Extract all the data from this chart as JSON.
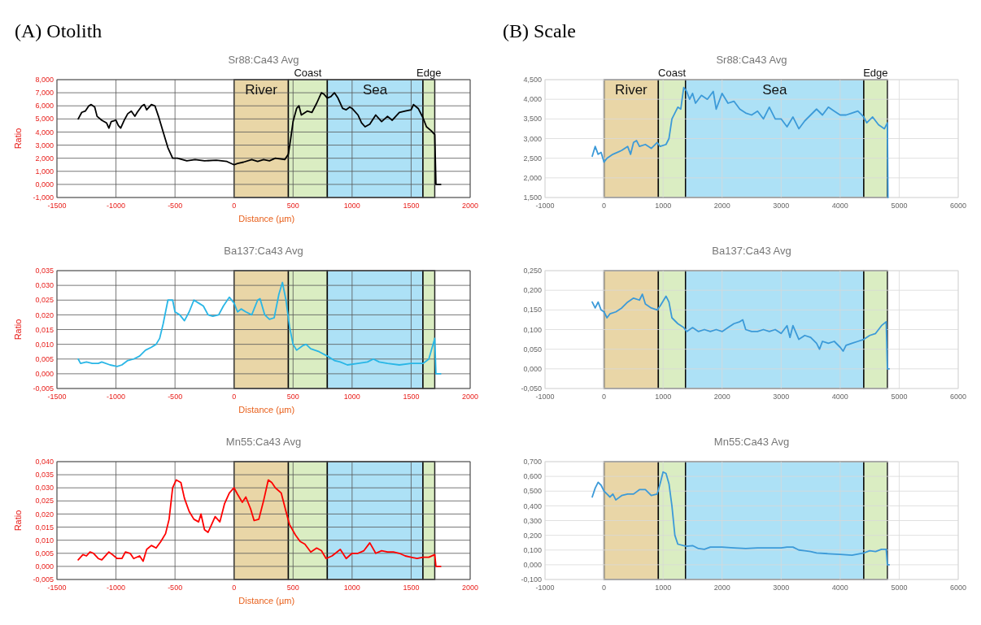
{
  "chart_data": [
    {
      "type": "line",
      "title": "Sr88:Ca43 Avg",
      "annotations": [
        "(A) Otolith"
      ],
      "xlabel": "Distance (µm)",
      "ylabel": "Ratio",
      "grid": true,
      "x": [
        -1320,
        -1290,
        -1260,
        -1230,
        -1210,
        -1180,
        -1160,
        -1120,
        -1080,
        -1060,
        -1040,
        -1000,
        -980,
        -960,
        -930,
        -900,
        -870,
        -840,
        -820,
        -780,
        -760,
        -740,
        -700,
        -670,
        -640,
        -600,
        -560,
        -520,
        -480,
        -400,
        -330,
        -250,
        -150,
        -60,
        0,
        30,
        80,
        150,
        200,
        250,
        300,
        350,
        430,
        460,
        480,
        500,
        530,
        550,
        570,
        620,
        660,
        700,
        740,
        760,
        790,
        820,
        850,
        880,
        920,
        950,
        980,
        1000,
        1050,
        1080,
        1110,
        1150,
        1200,
        1250,
        1300,
        1340,
        1400,
        1450,
        1500,
        1520,
        1560,
        1600,
        1630,
        1670,
        1700,
        1710,
        1750
      ],
      "series": [
        {
          "color": "#000000",
          "values": [
            5.0,
            5.5,
            5.6,
            6.0,
            6.1,
            5.9,
            5.2,
            4.9,
            4.7,
            4.3,
            4.8,
            4.9,
            4.5,
            4.3,
            4.9,
            5.4,
            5.6,
            5.2,
            5.5,
            6.0,
            6.1,
            5.7,
            6.1,
            6.0,
            5.2,
            4.0,
            2.8,
            2.0,
            2.0,
            1.8,
            1.9,
            1.8,
            1.85,
            1.75,
            1.5,
            1.6,
            1.7,
            1.9,
            1.75,
            1.9,
            1.8,
            2.0,
            1.9,
            2.3,
            3.5,
            4.8,
            5.8,
            6.0,
            5.3,
            5.6,
            5.5,
            6.2,
            7.0,
            6.9,
            6.6,
            6.7,
            7.0,
            6.6,
            5.8,
            5.7,
            5.9,
            5.8,
            5.3,
            4.7,
            4.4,
            4.6,
            5.3,
            4.8,
            5.2,
            4.9,
            5.5,
            5.6,
            5.7,
            6.1,
            5.8,
            5.1,
            4.4,
            4.1,
            3.8,
            0,
            0
          ]
        }
      ],
      "xlim": [
        -1500,
        2000
      ],
      "xticks": [
        -1500,
        -1000,
        -500,
        0,
        500,
        1000,
        1500,
        2000
      ],
      "ylim": [
        -1,
        8
      ],
      "yticks": [
        {
          "value": -1,
          "label": "-1,000"
        },
        {
          "value": 0,
          "label": "0,000"
        },
        {
          "value": 1,
          "label": "1,000"
        },
        {
          "value": 2,
          "label": "2,000"
        },
        {
          "value": 3,
          "label": "3,000"
        },
        {
          "value": 4,
          "label": "4,000"
        },
        {
          "value": 5,
          "label": "5,000"
        },
        {
          "value": 6,
          "label": "6,000"
        },
        {
          "value": 7,
          "label": "7,000"
        },
        {
          "value": 8,
          "label": "8,000"
        }
      ],
      "bands": [
        {
          "axis": "x",
          "from": 0,
          "to": 460,
          "label": "River",
          "color": "#e6cf98"
        },
        {
          "axis": "x",
          "from": 460,
          "to": 790,
          "label": "Coast",
          "color": "#d4ebb8"
        },
        {
          "axis": "x",
          "from": 790,
          "to": 1600,
          "label": "Sea",
          "color": "#9fdcf5"
        },
        {
          "axis": "x",
          "from": 1600,
          "to": 1700,
          "label": "Edge",
          "color": "#d4ebb8"
        }
      ]
    },
    {
      "type": "line",
      "title": "Ba137:Ca43 Avg",
      "xlabel": "Distance (µm)",
      "ylabel": "Ratio",
      "grid": true,
      "x": [
        -1320,
        -1300,
        -1250,
        -1200,
        -1150,
        -1120,
        -1050,
        -990,
        -950,
        -900,
        -850,
        -800,
        -750,
        -700,
        -660,
        -630,
        -600,
        -560,
        -520,
        -500,
        -460,
        -420,
        -380,
        -340,
        -300,
        -260,
        -220,
        -180,
        -130,
        -90,
        -40,
        0,
        30,
        60,
        100,
        150,
        200,
        220,
        260,
        300,
        340,
        380,
        410,
        440,
        470,
        500,
        530,
        580,
        610,
        650,
        720,
        790,
        850,
        900,
        960,
        1050,
        1130,
        1180,
        1230,
        1300,
        1400,
        1500,
        1600,
        1650,
        1700,
        1710,
        1750
      ],
      "series": [
        {
          "color": "#29b6e6",
          "values": [
            0.005,
            0.0035,
            0.004,
            0.0035,
            0.0035,
            0.004,
            0.003,
            0.0025,
            0.003,
            0.0045,
            0.005,
            0.006,
            0.008,
            0.009,
            0.01,
            0.012,
            0.017,
            0.025,
            0.025,
            0.021,
            0.02,
            0.018,
            0.021,
            0.025,
            0.024,
            0.023,
            0.02,
            0.0195,
            0.02,
            0.023,
            0.026,
            0.024,
            0.021,
            0.022,
            0.021,
            0.02,
            0.025,
            0.0255,
            0.02,
            0.0185,
            0.019,
            0.027,
            0.031,
            0.025,
            0.016,
            0.01,
            0.008,
            0.0095,
            0.01,
            0.0085,
            0.0075,
            0.006,
            0.0045,
            0.004,
            0.003,
            0.0035,
            0.004,
            0.005,
            0.004,
            0.0035,
            0.003,
            0.0035,
            0.0035,
            0.005,
            0.012,
            0,
            0
          ]
        }
      ],
      "xlim": [
        -1500,
        2000
      ],
      "xticks": [
        -1500,
        -1000,
        -500,
        0,
        500,
        1000,
        1500,
        2000
      ],
      "ylim": [
        -0.005,
        0.035
      ],
      "yticks": [
        {
          "value": -0.005,
          "label": "-0,005"
        },
        {
          "value": 0,
          "label": "0,000"
        },
        {
          "value": 0.005,
          "label": "0,005"
        },
        {
          "value": 0.01,
          "label": "0,010"
        },
        {
          "value": 0.015,
          "label": "0,015"
        },
        {
          "value": 0.02,
          "label": "0,020"
        },
        {
          "value": 0.025,
          "label": "0,025"
        },
        {
          "value": 0.03,
          "label": "0,030"
        },
        {
          "value": 0.035,
          "label": "0,035"
        }
      ],
      "bands": [
        {
          "axis": "x",
          "from": 0,
          "to": 460,
          "color": "#e6cf98"
        },
        {
          "axis": "x",
          "from": 460,
          "to": 790,
          "color": "#d4ebb8"
        },
        {
          "axis": "x",
          "from": 790,
          "to": 1600,
          "color": "#9fdcf5"
        },
        {
          "axis": "x",
          "from": 1600,
          "to": 1700,
          "color": "#d4ebb8"
        }
      ]
    },
    {
      "type": "line",
      "title": "Mn55:Ca43 Avg",
      "xlabel": "Distance (µm)",
      "ylabel": "Ratio",
      "grid": true,
      "x": [
        -1320,
        -1280,
        -1250,
        -1220,
        -1190,
        -1150,
        -1120,
        -1060,
        -1030,
        -990,
        -950,
        -920,
        -880,
        -850,
        -800,
        -770,
        -740,
        -700,
        -660,
        -620,
        -580,
        -550,
        -520,
        -490,
        -450,
        -420,
        -380,
        -340,
        -300,
        -280,
        -250,
        -220,
        -190,
        -160,
        -120,
        -80,
        -40,
        0,
        30,
        70,
        100,
        140,
        170,
        210,
        250,
        290,
        320,
        350,
        400,
        440,
        470,
        520,
        560,
        600,
        650,
        700,
        740,
        780,
        830,
        900,
        950,
        1000,
        1050,
        1100,
        1150,
        1200,
        1250,
        1300,
        1350,
        1400,
        1450,
        1500,
        1550,
        1600,
        1650,
        1700,
        1710,
        1750
      ],
      "series": [
        {
          "color": "#ff0000",
          "values": [
            0.0025,
            0.0045,
            0.004,
            0.0055,
            0.005,
            0.003,
            0.0025,
            0.0055,
            0.0045,
            0.003,
            0.003,
            0.0055,
            0.005,
            0.003,
            0.004,
            0.002,
            0.0065,
            0.008,
            0.007,
            0.0095,
            0.0125,
            0.018,
            0.03,
            0.033,
            0.032,
            0.026,
            0.021,
            0.018,
            0.017,
            0.02,
            0.014,
            0.013,
            0.016,
            0.019,
            0.017,
            0.024,
            0.028,
            0.03,
            0.0275,
            0.0245,
            0.0265,
            0.022,
            0.0175,
            0.018,
            0.025,
            0.033,
            0.032,
            0.03,
            0.028,
            0.021,
            0.016,
            0.012,
            0.0095,
            0.0085,
            0.0055,
            0.007,
            0.006,
            0.003,
            0.004,
            0.0065,
            0.003,
            0.005,
            0.005,
            0.006,
            0.009,
            0.005,
            0.006,
            0.0055,
            0.0055,
            0.005,
            0.004,
            0.0035,
            0.003,
            0.0035,
            0.0035,
            0.0045,
            0,
            0
          ]
        }
      ],
      "xlim": [
        -1500,
        2000
      ],
      "xticks": [
        -1500,
        -1000,
        -500,
        0,
        500,
        1000,
        1500,
        2000
      ],
      "ylim": [
        -0.005,
        0.04
      ],
      "yticks": [
        {
          "value": -0.005,
          "label": "-0,005"
        },
        {
          "value": 0,
          "label": "0,000"
        },
        {
          "value": 0.005,
          "label": "0,005"
        },
        {
          "value": 0.01,
          "label": "0,010"
        },
        {
          "value": 0.015,
          "label": "0,015"
        },
        {
          "value": 0.02,
          "label": "0,020"
        },
        {
          "value": 0.025,
          "label": "0,025"
        },
        {
          "value": 0.03,
          "label": "0,030"
        },
        {
          "value": 0.035,
          "label": "0,035"
        },
        {
          "value": 0.04,
          "label": "0,040"
        }
      ],
      "bands": [
        {
          "axis": "x",
          "from": 0,
          "to": 460,
          "color": "#e6cf98"
        },
        {
          "axis": "x",
          "from": 460,
          "to": 790,
          "color": "#d4ebb8"
        },
        {
          "axis": "x",
          "from": 790,
          "to": 1600,
          "color": "#9fdcf5"
        },
        {
          "axis": "x",
          "from": 1600,
          "to": 1700,
          "color": "#d4ebb8"
        }
      ]
    },
    {
      "type": "line",
      "title": "Sr88:Ca43 Avg",
      "annotations": [
        "(B) Scale"
      ],
      "grid": true,
      "x": [
        -200,
        -150,
        -100,
        -50,
        0,
        50,
        150,
        300,
        400,
        450,
        500,
        550,
        600,
        700,
        800,
        900,
        950,
        1050,
        1100,
        1150,
        1250,
        1300,
        1350,
        1400,
        1450,
        1500,
        1550,
        1650,
        1750,
        1850,
        1900,
        2000,
        2100,
        2200,
        2300,
        2400,
        2500,
        2600,
        2700,
        2800,
        2900,
        3000,
        3100,
        3200,
        3300,
        3400,
        3500,
        3600,
        3700,
        3800,
        3900,
        4000,
        4100,
        4200,
        4300,
        4400,
        4450,
        4550,
        4650,
        4750,
        4800,
        4810
      ],
      "series": [
        {
          "color": "#3c9ad8",
          "values": [
            2.55,
            2.8,
            2.6,
            2.65,
            2.4,
            2.5,
            2.6,
            2.7,
            2.8,
            2.6,
            2.9,
            2.95,
            2.8,
            2.85,
            2.75,
            2.9,
            2.8,
            2.85,
            3.0,
            3.5,
            3.8,
            3.75,
            4.3,
            4.2,
            4.0,
            4.15,
            3.9,
            4.1,
            4.0,
            4.2,
            3.75,
            4.15,
            3.9,
            3.95,
            3.75,
            3.65,
            3.6,
            3.7,
            3.5,
            3.8,
            3.5,
            3.5,
            3.3,
            3.55,
            3.25,
            3.45,
            3.6,
            3.75,
            3.6,
            3.8,
            3.7,
            3.6,
            3.6,
            3.65,
            3.7,
            3.55,
            3.4,
            3.55,
            3.35,
            3.25,
            3.4,
            1.5
          ]
        }
      ],
      "xlim": [
        -1000,
        6000
      ],
      "xticks": [
        -1000,
        0,
        1000,
        2000,
        3000,
        4000,
        5000,
        6000
      ],
      "ylim": [
        1.5,
        4.5
      ],
      "yticks": [
        {
          "value": 1.5,
          "label": "1,500"
        },
        {
          "value": 2,
          "label": "2,000"
        },
        {
          "value": 2.5,
          "label": "2,500"
        },
        {
          "value": 3,
          "label": "3,000"
        },
        {
          "value": 3.5,
          "label": "3,500"
        },
        {
          "value": 4,
          "label": "4,000"
        },
        {
          "value": 4.5,
          "label": "4,500"
        }
      ],
      "bands": [
        {
          "axis": "x",
          "from": 0,
          "to": 920,
          "label": "River",
          "color": "#e6cf98"
        },
        {
          "axis": "x",
          "from": 920,
          "to": 1380,
          "label": "Coast",
          "color": "#d4ebb8"
        },
        {
          "axis": "x",
          "from": 1380,
          "to": 4400,
          "label": "Sea",
          "color": "#9fdcf5"
        },
        {
          "axis": "x",
          "from": 4400,
          "to": 4800,
          "label": "Edge",
          "color": "#d4ebb8"
        }
      ]
    },
    {
      "type": "line",
      "title": "Ba137:Ca43 Avg",
      "grid": true,
      "x": [
        -200,
        -150,
        -100,
        -50,
        0,
        50,
        100,
        200,
        300,
        400,
        500,
        600,
        650,
        700,
        800,
        900,
        950,
        1050,
        1100,
        1150,
        1250,
        1350,
        1400,
        1500,
        1600,
        1700,
        1800,
        1900,
        2000,
        2100,
        2200,
        2300,
        2350,
        2400,
        2500,
        2600,
        2700,
        2800,
        2900,
        3000,
        3100,
        3150,
        3200,
        3300,
        3400,
        3500,
        3600,
        3650,
        3700,
        3800,
        3900,
        4000,
        4050,
        4100,
        4200,
        4300,
        4400,
        4500,
        4600,
        4700,
        4780,
        4800,
        4830
      ],
      "series": [
        {
          "color": "#3c9ad8",
          "values": [
            0.17,
            0.155,
            0.17,
            0.15,
            0.145,
            0.13,
            0.14,
            0.145,
            0.155,
            0.17,
            0.18,
            0.175,
            0.19,
            0.165,
            0.155,
            0.15,
            0.16,
            0.185,
            0.17,
            0.13,
            0.115,
            0.105,
            0.095,
            0.105,
            0.095,
            0.1,
            0.095,
            0.1,
            0.095,
            0.105,
            0.115,
            0.12,
            0.125,
            0.1,
            0.095,
            0.095,
            0.1,
            0.095,
            0.1,
            0.09,
            0.11,
            0.08,
            0.11,
            0.075,
            0.085,
            0.08,
            0.065,
            0.05,
            0.07,
            0.065,
            0.07,
            0.055,
            0.045,
            0.06,
            0.065,
            0.07,
            0.075,
            0.085,
            0.09,
            0.11,
            0.12,
            0,
            0
          ]
        }
      ],
      "xlim": [
        -1000,
        6000
      ],
      "xticks": [
        -1000,
        0,
        1000,
        2000,
        3000,
        4000,
        5000,
        6000
      ],
      "ylim": [
        -0.05,
        0.25
      ],
      "yticks": [
        {
          "value": -0.05,
          "label": "-0,050"
        },
        {
          "value": 0,
          "label": "0,000"
        },
        {
          "value": 0.05,
          "label": "0,050"
        },
        {
          "value": 0.1,
          "label": "0,100"
        },
        {
          "value": 0.15,
          "label": "0,150"
        },
        {
          "value": 0.2,
          "label": "0,200"
        },
        {
          "value": 0.25,
          "label": "0,250"
        }
      ],
      "bands": [
        {
          "axis": "x",
          "from": 0,
          "to": 920,
          "color": "#e6cf98"
        },
        {
          "axis": "x",
          "from": 920,
          "to": 1380,
          "color": "#d4ebb8"
        },
        {
          "axis": "x",
          "from": 1380,
          "to": 4400,
          "color": "#9fdcf5"
        },
        {
          "axis": "x",
          "from": 4400,
          "to": 4800,
          "color": "#d4ebb8"
        }
      ]
    },
    {
      "type": "line",
      "title": "Mn55:Ca43 Avg",
      "grid": true,
      "x": [
        -200,
        -150,
        -100,
        -50,
        0,
        50,
        100,
        150,
        200,
        300,
        400,
        500,
        600,
        700,
        800,
        900,
        950,
        1000,
        1050,
        1100,
        1150,
        1200,
        1250,
        1350,
        1400,
        1500,
        1600,
        1700,
        1800,
        2000,
        2200,
        2400,
        2600,
        2800,
        3000,
        3100,
        3200,
        3300,
        3400,
        3500,
        3600,
        3800,
        4000,
        4200,
        4400,
        4500,
        4600,
        4700,
        4780,
        4800,
        4830
      ],
      "series": [
        {
          "color": "#3c9ad8",
          "values": [
            0.46,
            0.52,
            0.56,
            0.54,
            0.5,
            0.48,
            0.46,
            0.48,
            0.44,
            0.47,
            0.48,
            0.48,
            0.51,
            0.51,
            0.47,
            0.48,
            0.55,
            0.63,
            0.62,
            0.55,
            0.4,
            0.2,
            0.14,
            0.13,
            0.125,
            0.13,
            0.11,
            0.105,
            0.12,
            0.12,
            0.115,
            0.11,
            0.115,
            0.115,
            0.115,
            0.12,
            0.12,
            0.1,
            0.095,
            0.09,
            0.08,
            0.075,
            0.07,
            0.065,
            0.08,
            0.095,
            0.09,
            0.105,
            0.105,
            0,
            0
          ]
        }
      ],
      "xlim": [
        -1000,
        6000
      ],
      "xticks": [
        -1000,
        0,
        1000,
        2000,
        3000,
        4000,
        5000,
        6000
      ],
      "ylim": [
        -0.1,
        0.7
      ],
      "yticks": [
        {
          "value": -0.1,
          "label": "-0,100"
        },
        {
          "value": 0,
          "label": "0,000"
        },
        {
          "value": 0.1,
          "label": "0,100"
        },
        {
          "value": 0.2,
          "label": "0,200"
        },
        {
          "value": 0.3,
          "label": "0,300"
        },
        {
          "value": 0.4,
          "label": "0,400"
        },
        {
          "value": 0.5,
          "label": "0,500"
        },
        {
          "value": 0.6,
          "label": "0,600"
        },
        {
          "value": 0.7,
          "label": "0,700"
        }
      ],
      "bands": [
        {
          "axis": "x",
          "from": 0,
          "to": 920,
          "color": "#e6cf98"
        },
        {
          "axis": "x",
          "from": 920,
          "to": 1380,
          "color": "#d4ebb8"
        },
        {
          "axis": "x",
          "from": 1380,
          "to": 4400,
          "color": "#9fdcf5"
        },
        {
          "axis": "x",
          "from": 4400,
          "to": 4800,
          "color": "#d4ebb8"
        }
      ]
    }
  ]
}
